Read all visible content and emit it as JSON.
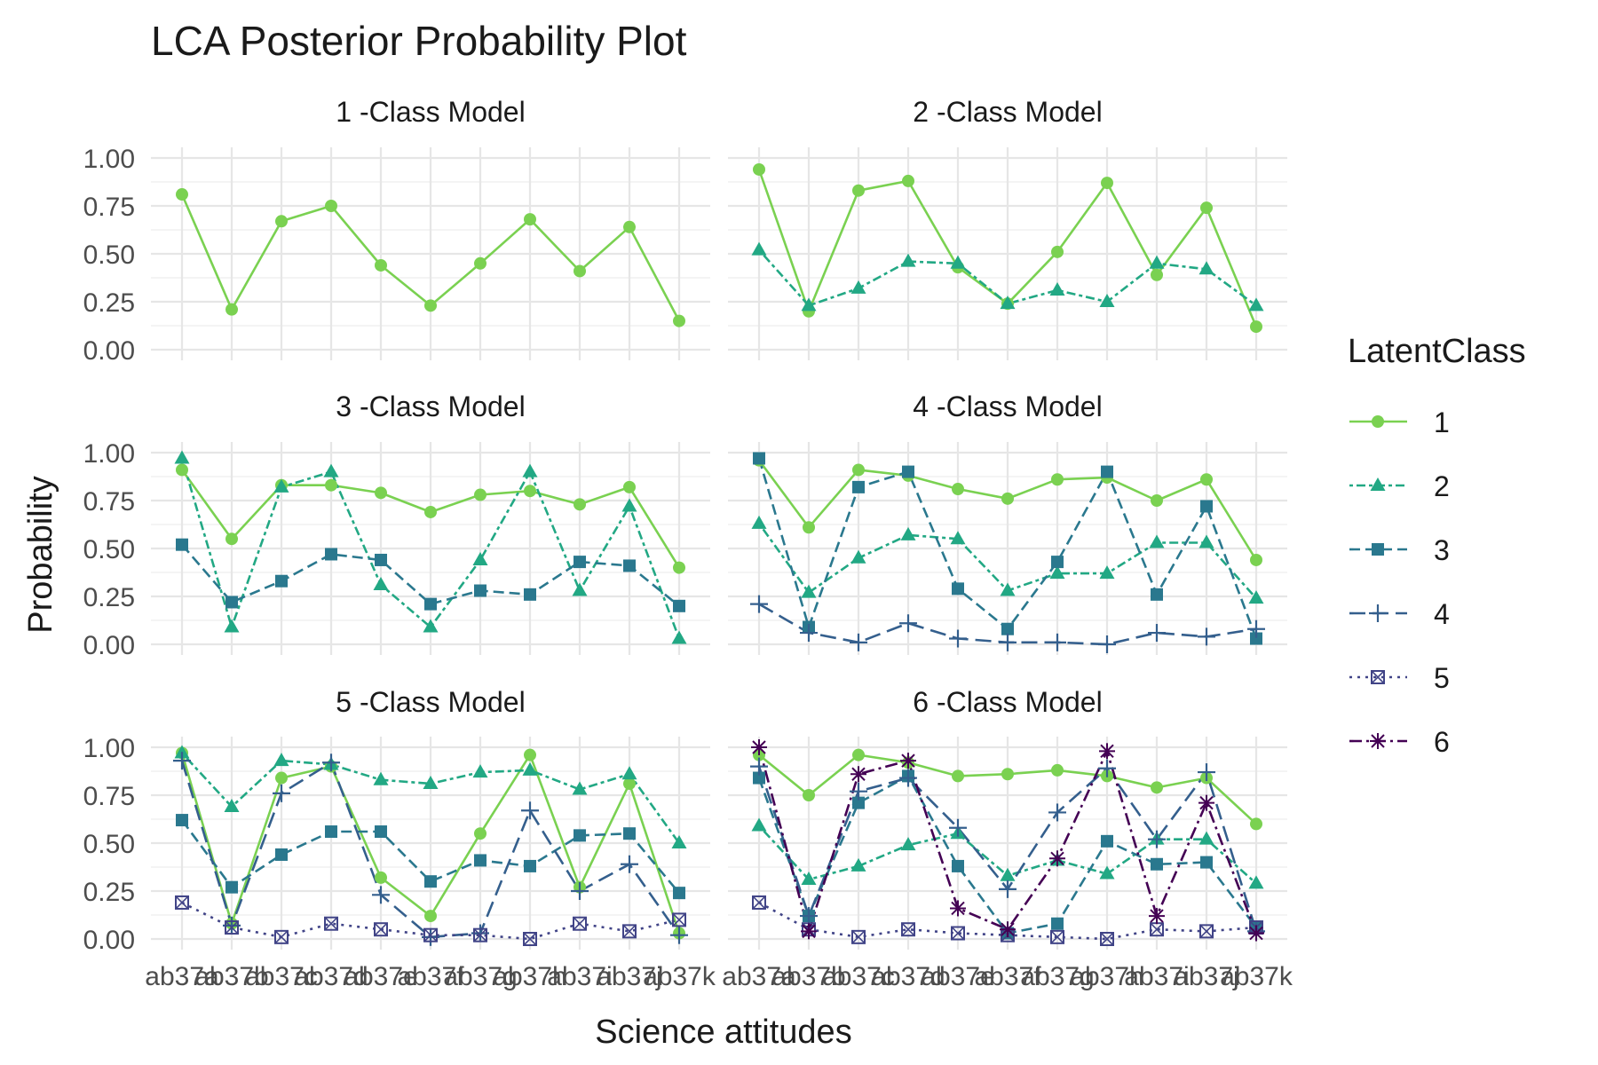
{
  "chart_data": {
    "type": "line",
    "title": "LCA Posterior Probability Plot",
    "xlabel": "Science attitudes",
    "ylabel": "Probability",
    "ylim": [
      0,
      1
    ],
    "yticks": [
      "0.00",
      "0.25",
      "0.50",
      "0.75",
      "1.00"
    ],
    "grid": true,
    "legend_title": "LatentClass",
    "legend_position": "right",
    "categories": [
      "ab37a",
      "ab37b",
      "ab37c",
      "ab37d",
      "ab37e",
      "ab37f",
      "ab37g",
      "ab37h",
      "ab37i",
      "ab37j",
      "ab37k"
    ],
    "x_tick_labels": [
      "ab37a",
      "ab37b",
      "ab37c",
      "ab37d",
      "ab37e",
      "ab37f",
      "ab37g",
      "ab37h",
      "ab37i",
      "ab37j",
      "ab37k"
    ],
    "classes": [
      {
        "label": "1",
        "color": "#7AD151",
        "marker": "circle",
        "dash": "solid"
      },
      {
        "label": "2",
        "color": "#22A884",
        "marker": "triangle",
        "dash": "dotted-dash"
      },
      {
        "label": "3",
        "color": "#2A788E",
        "marker": "square",
        "dash": "dashed"
      },
      {
        "label": "4",
        "color": "#345F8D",
        "marker": "plus",
        "dash": "long-dash"
      },
      {
        "label": "5",
        "color": "#414487",
        "marker": "boxed-x",
        "dash": "dotted"
      },
      {
        "label": "6",
        "color": "#440154",
        "marker": "asterisk",
        "dash": "dash-dot"
      }
    ],
    "panels": [
      {
        "title": "1 -Class Model",
        "series": [
          {
            "class": "1",
            "values": [
              0.81,
              0.21,
              0.67,
              0.75,
              0.44,
              0.23,
              0.45,
              0.68,
              0.41,
              0.64,
              0.15
            ]
          }
        ]
      },
      {
        "title": "2 -Class Model",
        "series": [
          {
            "class": "1",
            "values": [
              0.94,
              0.2,
              0.83,
              0.88,
              0.43,
              0.24,
              0.51,
              0.87,
              0.39,
              0.74,
              0.12
            ]
          },
          {
            "class": "2",
            "values": [
              0.52,
              0.23,
              0.32,
              0.46,
              0.45,
              0.24,
              0.31,
              0.25,
              0.45,
              0.42,
              0.23
            ]
          }
        ]
      },
      {
        "title": "3 -Class Model",
        "series": [
          {
            "class": "1",
            "values": [
              0.91,
              0.55,
              0.83,
              0.83,
              0.79,
              0.69,
              0.78,
              0.8,
              0.73,
              0.82,
              0.4
            ]
          },
          {
            "class": "2",
            "values": [
              0.97,
              0.09,
              0.82,
              0.9,
              0.31,
              0.09,
              0.44,
              0.9,
              0.28,
              0.72,
              0.03
            ]
          },
          {
            "class": "3",
            "values": [
              0.52,
              0.22,
              0.33,
              0.47,
              0.44,
              0.21,
              0.28,
              0.26,
              0.43,
              0.41,
              0.2
            ]
          }
        ]
      },
      {
        "title": "4 -Class Model",
        "series": [
          {
            "class": "1",
            "values": [
              0.96,
              0.61,
              0.91,
              0.88,
              0.81,
              0.76,
              0.86,
              0.87,
              0.75,
              0.86,
              0.44
            ]
          },
          {
            "class": "2",
            "values": [
              0.63,
              0.27,
              0.45,
              0.57,
              0.55,
              0.28,
              0.37,
              0.37,
              0.53,
              0.53,
              0.24
            ]
          },
          {
            "class": "3",
            "values": [
              0.97,
              0.09,
              0.82,
              0.9,
              0.29,
              0.08,
              0.43,
              0.9,
              0.26,
              0.72,
              0.03
            ]
          },
          {
            "class": "4",
            "values": [
              0.21,
              0.06,
              0.01,
              0.11,
              0.03,
              0.01,
              0.01,
              0.0,
              0.06,
              0.04,
              0.08
            ]
          }
        ]
      },
      {
        "title": "5 -Class Model",
        "series": [
          {
            "class": "1",
            "values": [
              0.97,
              0.08,
              0.84,
              0.9,
              0.32,
              0.12,
              0.55,
              0.96,
              0.27,
              0.81,
              0.03
            ]
          },
          {
            "class": "2",
            "values": [
              0.97,
              0.69,
              0.93,
              0.91,
              0.83,
              0.81,
              0.87,
              0.88,
              0.78,
              0.86,
              0.5
            ]
          },
          {
            "class": "3",
            "values": [
              0.62,
              0.27,
              0.44,
              0.56,
              0.56,
              0.3,
              0.41,
              0.38,
              0.54,
              0.55,
              0.24
            ]
          },
          {
            "class": "4",
            "values": [
              0.93,
              0.07,
              0.76,
              0.92,
              0.23,
              0.01,
              0.03,
              0.67,
              0.25,
              0.39,
              0.02
            ]
          },
          {
            "class": "5",
            "values": [
              0.19,
              0.06,
              0.01,
              0.08,
              0.05,
              0.02,
              0.02,
              0.0,
              0.08,
              0.04,
              0.1
            ]
          }
        ]
      },
      {
        "title": "6 -Class Model",
        "series": [
          {
            "class": "1",
            "values": [
              0.96,
              0.75,
              0.96,
              0.92,
              0.85,
              0.86,
              0.88,
              0.85,
              0.79,
              0.84,
              0.6
            ]
          },
          {
            "class": "2",
            "values": [
              0.59,
              0.31,
              0.38,
              0.49,
              0.55,
              0.33,
              0.41,
              0.34,
              0.52,
              0.52,
              0.29
            ]
          },
          {
            "class": "3",
            "values": [
              0.84,
              0.12,
              0.71,
              0.85,
              0.38,
              0.03,
              0.08,
              0.51,
              0.39,
              0.4,
              0.06
            ]
          },
          {
            "class": "4",
            "values": [
              0.9,
              0.12,
              0.77,
              0.84,
              0.58,
              0.26,
              0.66,
              0.89,
              0.52,
              0.87,
              0.04
            ]
          },
          {
            "class": "5",
            "values": [
              0.19,
              0.05,
              0.01,
              0.05,
              0.03,
              0.02,
              0.01,
              0.0,
              0.05,
              0.04,
              0.06
            ]
          },
          {
            "class": "6",
            "values": [
              1.0,
              0.04,
              0.86,
              0.93,
              0.16,
              0.05,
              0.42,
              0.98,
              0.12,
              0.71,
              0.03
            ]
          }
        ]
      }
    ]
  }
}
